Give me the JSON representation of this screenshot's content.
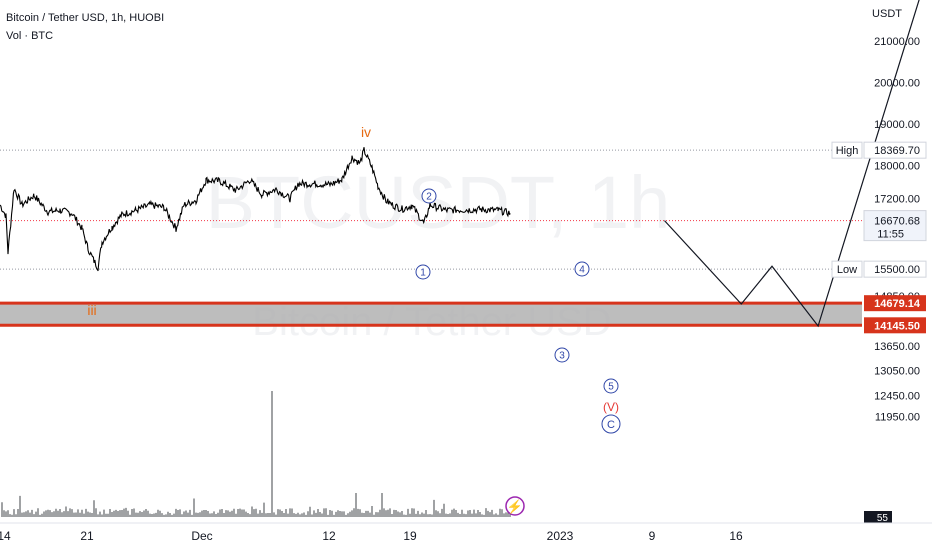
{
  "header": {
    "title": "Bitcoin / Tether USD, 1h, HUOBI",
    "volume_label": "Vol · BTC",
    "currency": "USDT"
  },
  "watermark": {
    "symbol": "BTCUSDT, 1h",
    "description": "Bitcoin / Tether USD"
  },
  "colors": {
    "zone_line": "#d7341c",
    "zone_fill": "#b2b2b2",
    "wave_orange": "#e66a13",
    "wave_blue": "#3047a8",
    "wave_red": "#e53935",
    "flash": "#9c27b0"
  },
  "chart_data": {
    "type": "line",
    "ylim": [
      11700,
      22000
    ],
    "y_ticks": [
      "21000.00",
      "20000.00",
      "19000.00",
      "18000.00",
      "17200.00",
      "15500.00",
      "14850.00",
      "13650.00",
      "13050.00",
      "12450.00",
      "11950.00"
    ],
    "x_ticks": [
      "14",
      "21",
      "Dec",
      "12",
      "19",
      "2023",
      "9",
      "16"
    ],
    "price_markers": [
      {
        "label": "High",
        "value": "18369.70"
      },
      {
        "label": "",
        "value": "16670.68",
        "sub": "11:55"
      },
      {
        "label": "Low",
        "value": "15500.00"
      },
      {
        "label": "",
        "value": "14679.14"
      },
      {
        "label": "",
        "value": "14145.50"
      }
    ],
    "volume_badge": "55",
    "zone": [
      14145.5,
      14679.14
    ],
    "wave_labels": [
      "iii",
      "iv",
      "1",
      "2",
      "3",
      "4",
      "5",
      "(V)",
      "C"
    ],
    "projection": [
      {
        "date": "2022-12-27",
        "value": 16670
      },
      {
        "date": "2023-01-01",
        "value": 14660
      },
      {
        "date": "2023-01-03",
        "value": 15570
      },
      {
        "date": "2023-01-06",
        "value": 14130
      },
      {
        "date": "2023-01-13",
        "value": 22500
      }
    ]
  }
}
